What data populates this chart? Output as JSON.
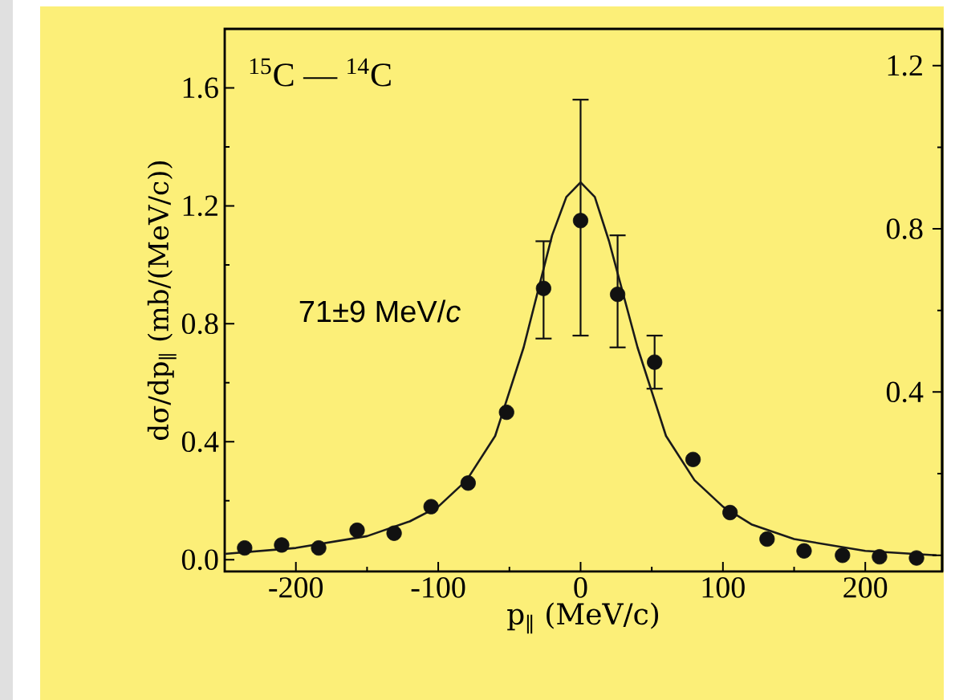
{
  "chart_data": {
    "type": "scatter",
    "xlabel": "p$_{∥}$ (MeV/c)",
    "ylabel": "dσ/dp$_{∥}$ (mb/(MeV/c))",
    "annotations": [
      "$^{15}$C — $^{14}$C",
      "71±9 MeV/*c*"
    ],
    "xlim": [
      -250,
      254
    ],
    "ylim": [
      -0.04,
      1.8
    ],
    "y2lim": [
      -0.04,
      1.29
    ],
    "xticks": [
      -200,
      -100,
      0,
      100,
      200
    ],
    "yticks": [
      {
        "value": 0,
        "label": "0.0"
      },
      0.4,
      0.8,
      1.2,
      1.6
    ],
    "y2ticks": [
      {
        "value": 0,
        "label": null
      },
      0.4,
      0.8,
      1.2
    ],
    "series": [
      {
        "marker": "circle",
        "color": "#111111",
        "x": [
          -236,
          -210,
          -184,
          -157,
          -131,
          -105,
          -79,
          -52,
          -26,
          0,
          26,
          52,
          79,
          105,
          131,
          157,
          184,
          210,
          236
        ],
        "values": [
          0.04,
          0.05,
          0.04,
          0.1,
          0.09,
          0.18,
          0.26,
          0.5,
          0.92,
          1.15,
          0.9,
          0.67,
          0.34,
          0.16,
          0.07,
          0.03,
          0.015,
          0.01,
          0.006
        ],
        "errors": [
          null,
          null,
          null,
          null,
          null,
          null,
          null,
          null,
          [
            0.75,
            1.08
          ],
          [
            0.76,
            1.56
          ],
          [
            0.72,
            1.1
          ],
          [
            0.58,
            0.76
          ],
          null,
          null,
          null,
          null,
          null,
          null,
          null
        ]
      },
      {
        "type": "line",
        "marker": "none",
        "line_style": "solid",
        "color": "#1a1a1a",
        "x": [
          -250,
          -200,
          -150,
          -120,
          -100,
          -80,
          -60,
          -40,
          -20,
          -10,
          0,
          10,
          20,
          40,
          60,
          80,
          100,
          120,
          150,
          200,
          250
        ],
        "values": [
          0.02,
          0.04,
          0.08,
          0.13,
          0.18,
          0.27,
          0.42,
          0.72,
          1.1,
          1.23,
          1.28,
          1.23,
          1.08,
          0.72,
          0.42,
          0.27,
          0.18,
          0.12,
          0.07,
          0.03,
          0.015
        ]
      }
    ]
  }
}
